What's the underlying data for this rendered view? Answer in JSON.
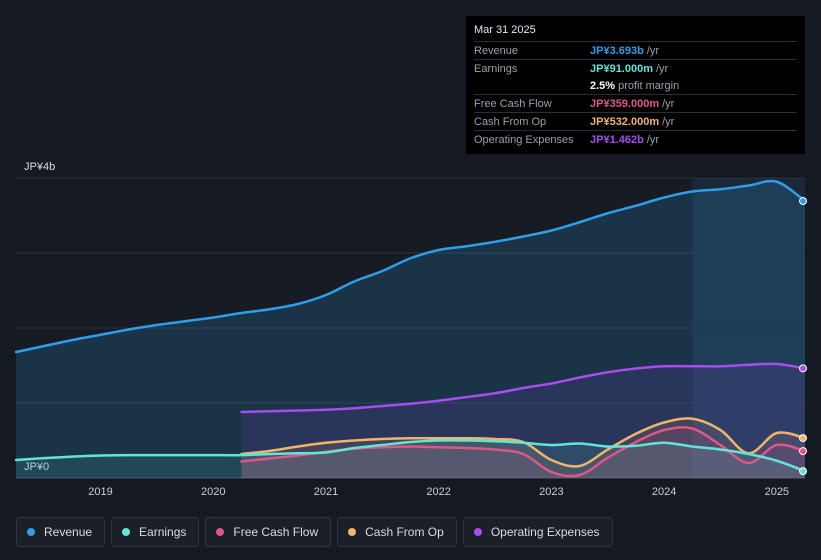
{
  "tooltip": {
    "date": "Mar 31 2025",
    "rows": [
      {
        "label": "Revenue",
        "value": "JP¥3.693b",
        "unit": "/yr",
        "color": "#2d9ee8"
      },
      {
        "label": "Earnings",
        "value": "JP¥91.000m",
        "unit": "/yr",
        "color": "#5fe6d6"
      },
      {
        "label": "",
        "value": "2.5%",
        "unit": "profit margin",
        "color": "#ffffff"
      },
      {
        "label": "Free Cash Flow",
        "value": "JP¥359.000m",
        "unit": "/yr",
        "color": "#e0558a"
      },
      {
        "label": "Cash From Op",
        "value": "JP¥532.000m",
        "unit": "/yr",
        "color": "#f0b46a"
      },
      {
        "label": "Operating Expenses",
        "value": "JP¥1.462b",
        "unit": "/yr",
        "color": "#a64cf0"
      }
    ]
  },
  "legend": [
    {
      "label": "Revenue",
      "color": "#2d9ee8"
    },
    {
      "label": "Earnings",
      "color": "#5fe6d6"
    },
    {
      "label": "Free Cash Flow",
      "color": "#e0558a"
    },
    {
      "label": "Cash From Op",
      "color": "#f0b46a"
    },
    {
      "label": "Operating Expenses",
      "color": "#a64cf0"
    }
  ],
  "chart_data": {
    "type": "line",
    "title": "",
    "ylabel_top": "JP¥4b",
    "ylabel_bottom": "JP¥0",
    "ylim": [
      0,
      4000
    ],
    "xlim": [
      2018.25,
      2025.25
    ],
    "xticks": [
      "2019",
      "2020",
      "2021",
      "2022",
      "2023",
      "2024",
      "2025"
    ],
    "highlight_from": 2024.25,
    "series": [
      {
        "name": "Revenue",
        "color": "#2d9ee8",
        "fill": true,
        "x": [
          2018.25,
          2018.5,
          2018.75,
          2019.0,
          2019.25,
          2019.5,
          2019.75,
          2020.0,
          2020.25,
          2020.5,
          2020.75,
          2021.0,
          2021.25,
          2021.5,
          2021.75,
          2022.0,
          2022.25,
          2022.5,
          2022.75,
          2023.0,
          2023.25,
          2023.5,
          2023.75,
          2024.0,
          2024.25,
          2024.5,
          2024.75,
          2025.0,
          2025.25
        ],
        "values": [
          1680,
          1760,
          1840,
          1910,
          1980,
          2040,
          2090,
          2140,
          2200,
          2250,
          2320,
          2440,
          2620,
          2760,
          2930,
          3040,
          3090,
          3150,
          3220,
          3300,
          3410,
          3530,
          3630,
          3740,
          3820,
          3850,
          3900,
          3950,
          3693
        ]
      },
      {
        "name": "Earnings",
        "color": "#5fe6d6",
        "fill": true,
        "x": [
          2018.25,
          2018.5,
          2018.75,
          2019.0,
          2019.25,
          2019.5,
          2019.75,
          2020.0,
          2020.25,
          2020.5,
          2020.75,
          2021.0,
          2021.25,
          2021.5,
          2021.75,
          2022.0,
          2022.25,
          2022.5,
          2022.75,
          2023.0,
          2023.25,
          2023.5,
          2023.75,
          2024.0,
          2024.25,
          2024.5,
          2024.75,
          2025.0,
          2025.25
        ],
        "values": [
          240,
          265,
          285,
          300,
          305,
          305,
          305,
          305,
          305,
          320,
          330,
          340,
          400,
          440,
          480,
          500,
          500,
          490,
          470,
          440,
          460,
          420,
          430,
          470,
          420,
          380,
          320,
          230,
          91
        ]
      },
      {
        "name": "Free Cash Flow",
        "color": "#e0558a",
        "fill": true,
        "x": [
          2020.25,
          2020.5,
          2020.75,
          2021.0,
          2021.25,
          2021.5,
          2021.75,
          2022.0,
          2022.25,
          2022.5,
          2022.75,
          2023.0,
          2023.25,
          2023.5,
          2023.75,
          2024.0,
          2024.25,
          2024.5,
          2024.75,
          2025.0,
          2025.25
        ],
        "values": [
          220,
          260,
          300,
          350,
          390,
          410,
          420,
          410,
          400,
          380,
          320,
          80,
          40,
          270,
          480,
          640,
          660,
          440,
          200,
          440,
          359
        ]
      },
      {
        "name": "Cash From Op",
        "color": "#f0b46a",
        "fill": true,
        "x": [
          2020.25,
          2020.5,
          2020.75,
          2021.0,
          2021.25,
          2021.5,
          2021.75,
          2022.0,
          2022.25,
          2022.5,
          2022.75,
          2023.0,
          2023.25,
          2023.5,
          2023.75,
          2024.0,
          2024.25,
          2024.5,
          2024.75,
          2025.0,
          2025.25
        ],
        "values": [
          320,
          360,
          420,
          470,
          500,
          520,
          530,
          530,
          530,
          520,
          480,
          240,
          160,
          380,
          590,
          740,
          790,
          640,
          330,
          600,
          532
        ]
      },
      {
        "name": "Operating Expenses",
        "color": "#a64cf0",
        "fill": true,
        "x": [
          2020.25,
          2020.5,
          2020.75,
          2021.0,
          2021.25,
          2021.5,
          2021.75,
          2022.0,
          2022.25,
          2022.5,
          2022.75,
          2023.0,
          2023.25,
          2023.5,
          2023.75,
          2024.0,
          2024.25,
          2024.5,
          2024.75,
          2025.0,
          2025.25
        ],
        "values": [
          880,
          890,
          900,
          910,
          930,
          960,
          990,
          1030,
          1080,
          1130,
          1200,
          1260,
          1340,
          1410,
          1460,
          1490,
          1490,
          1490,
          1510,
          1520,
          1462
        ]
      }
    ]
  }
}
